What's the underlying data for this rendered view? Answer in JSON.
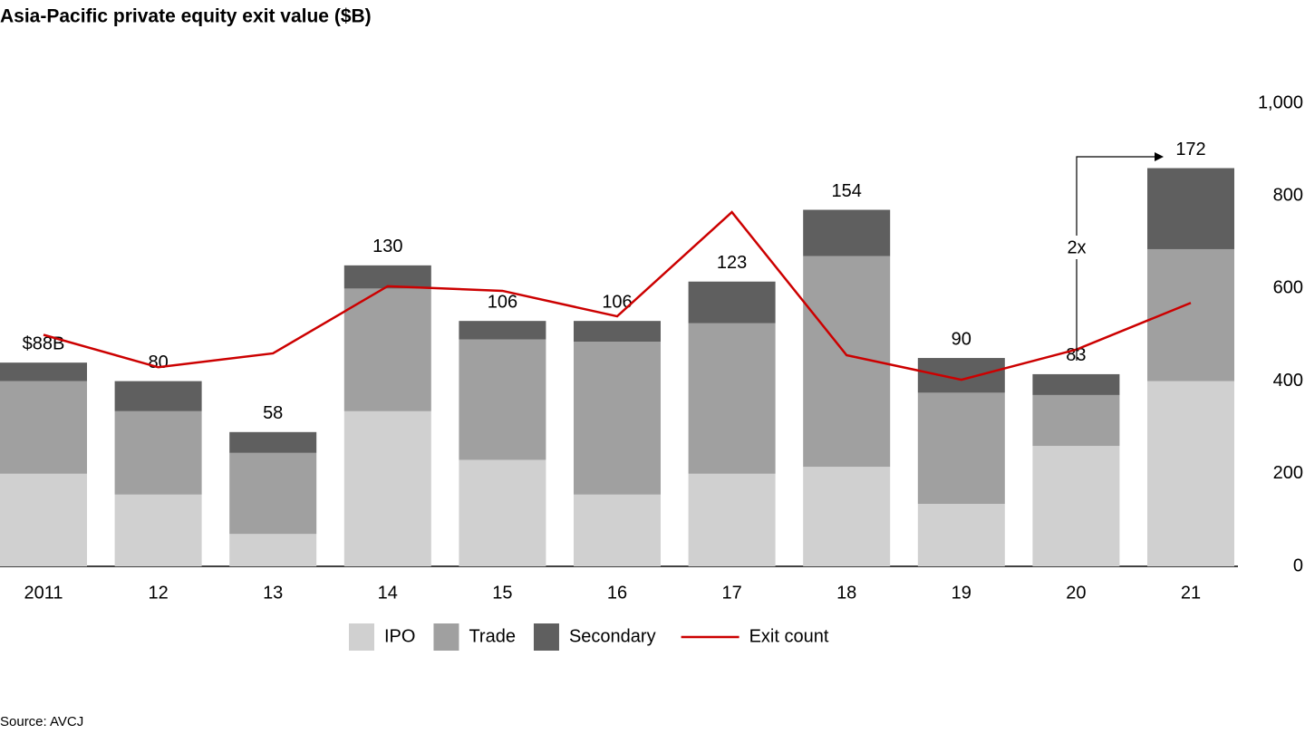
{
  "chart_data": {
    "type": "stacked-bar-line",
    "title": "Asia-Pacific private equity exit value ($B)",
    "categories": [
      "2011",
      "12",
      "13",
      "14",
      "15",
      "16",
      "17",
      "18",
      "19",
      "20",
      "21"
    ],
    "series": [
      {
        "name": "IPO",
        "color": "#d0d0d0",
        "values": [
          40,
          31,
          14,
          67,
          46,
          31,
          40,
          43,
          27,
          52,
          80
        ]
      },
      {
        "name": "Trade",
        "color": "#a0a0a0",
        "values": [
          40,
          36,
          35,
          53,
          52,
          66,
          65,
          91,
          48,
          22,
          57
        ]
      },
      {
        "name": "Secondary",
        "color": "#5f5f5f",
        "values": [
          8,
          13,
          9,
          10,
          8,
          9,
          18,
          20,
          15,
          9,
          35
        ]
      },
      {
        "name": "Exit count",
        "color": "#cc0000",
        "axis": "y2",
        "type": "line",
        "values": [
          500,
          430,
          460,
          605,
          595,
          540,
          765,
          456,
          403,
          468,
          569
        ]
      }
    ],
    "totals": {
      "values": [
        88,
        80,
        58,
        130,
        106,
        106,
        123,
        154,
        90,
        83,
        172
      ],
      "value_labels": [
        "$88B",
        "80",
        "58",
        "130",
        "106",
        "106",
        "123",
        "154",
        "90",
        "83",
        "172"
      ]
    },
    "ylim": [
      0,
      200
    ],
    "y2lim": [
      0,
      1000
    ],
    "y2ticks": [
      0,
      200,
      400,
      600,
      800,
      {
        "value": 1000,
        "label": "1,000"
      }
    ],
    "annotation": "2x",
    "source": "Source: AVCJ"
  }
}
